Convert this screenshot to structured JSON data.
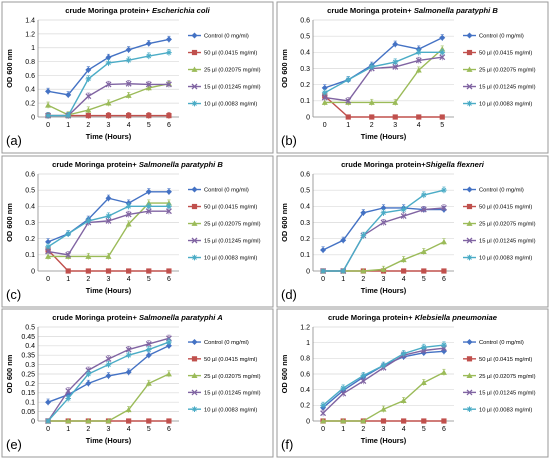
{
  "figure": {
    "background": "#ffffff",
    "panel_border_color": "#999999",
    "axis_color": "#888888",
    "grid_color": "#d9d9d9"
  },
  "series_styles": [
    {
      "color": "#4472c4",
      "marker": "diamond"
    },
    {
      "color": "#c0504d",
      "marker": "square"
    },
    {
      "color": "#9bbb59",
      "marker": "triangle"
    },
    {
      "color": "#8064a2",
      "marker": "x"
    },
    {
      "color": "#4bacc6",
      "marker": "star"
    }
  ],
  "chart_data": [
    {
      "type": "line",
      "panel_letter": "(a)",
      "title_prefix": "crude Moringa protein+ ",
      "title_organism": "Escherichia coli",
      "xlabel": "Time (Hours)",
      "ylabel": "OD 600 nm",
      "x": [
        0,
        1,
        2,
        3,
        4,
        5,
        6
      ],
      "ylim": [
        0,
        1.4
      ],
      "yticks": [
        0,
        0.2,
        0.4,
        0.6,
        0.8,
        1,
        1.2,
        1.4
      ],
      "ytick_labels": [
        "0",
        "0.2",
        "0.4",
        "0.6",
        "0.8",
        "1",
        "1.2",
        "1.4"
      ],
      "grid": true,
      "legend": "right",
      "series": [
        {
          "name": "Control (0 mg/ml)",
          "values": [
            0.37,
            0.32,
            0.68,
            0.86,
            0.97,
            1.06,
            1.12
          ]
        },
        {
          "name": "50 µl (0.0415 mg/ml)",
          "values": [
            0.02,
            0.02,
            0.02,
            0.02,
            0.02,
            0.02,
            0.02
          ]
        },
        {
          "name": "25 µl (0.02075 mg/ml)",
          "values": [
            0.17,
            0.03,
            0.1,
            0.2,
            0.31,
            0.42,
            0.48
          ]
        },
        {
          "name": "15 µl (0.01245 mg/ml)",
          "values": [
            0.02,
            0.02,
            0.3,
            0.47,
            0.48,
            0.47,
            0.47
          ]
        },
        {
          "name": "10 µl (0.0083 mg/ml)",
          "values": [
            0.02,
            0.02,
            0.55,
            0.78,
            0.82,
            0.88,
            0.93
          ]
        }
      ]
    },
    {
      "type": "line",
      "panel_letter": "(b)",
      "title_prefix": "crude Moringa protein+ ",
      "title_organism": "Salmonella paratyphi B",
      "xlabel": "Time (Hours)",
      "ylabel": "OD 600 nm",
      "x": [
        0,
        1,
        2,
        3,
        4,
        5
      ],
      "ylim": [
        0,
        0.6
      ],
      "yticks": [
        0,
        0.1,
        0.2,
        0.3,
        0.4,
        0.5,
        0.6
      ],
      "ytick_labels": [
        "0",
        "0.1",
        "0.2",
        "0.3",
        "0.4",
        "0.5",
        "0.6"
      ],
      "grid": true,
      "legend": "right",
      "series": [
        {
          "name": "Control (0 mg/ml)",
          "values": [
            0.18,
            0.23,
            0.32,
            0.45,
            0.42,
            0.49
          ]
        },
        {
          "name": "50 µl (0.0415 mg/ml)",
          "values": [
            0.13,
            0.0,
            0.0,
            0.0,
            0.0,
            0.0
          ]
        },
        {
          "name": "25 µl (0.02075 mg/ml)",
          "values": [
            0.09,
            0.09,
            0.09,
            0.09,
            0.29,
            0.42
          ]
        },
        {
          "name": "15 µl (0.01245 mg/ml)",
          "values": [
            0.12,
            0.1,
            0.3,
            0.31,
            0.35,
            0.37
          ]
        },
        {
          "name": "10 µl (0.0083 mg/ml)",
          "values": [
            0.15,
            0.23,
            0.31,
            0.34,
            0.4,
            0.4
          ]
        }
      ]
    },
    {
      "type": "line",
      "panel_letter": "(c)",
      "title_prefix": "crude Moringa protein+ ",
      "title_organism": "Salmonella paratyphi B",
      "xlabel": "Time (Hours)",
      "ylabel": "OD 600 nm",
      "x": [
        0,
        1,
        2,
        3,
        4,
        5,
        6
      ],
      "ylim": [
        0,
        0.6
      ],
      "yticks": [
        0,
        0.1,
        0.2,
        0.3,
        0.4,
        0.5,
        0.6
      ],
      "ytick_labels": [
        "0",
        "0.1",
        "0.2",
        "0.3",
        "0.4",
        "0.5",
        "0.6"
      ],
      "grid": true,
      "legend": "right",
      "series": [
        {
          "name": "Control (0 mg/ml)",
          "values": [
            0.18,
            0.23,
            0.32,
            0.45,
            0.42,
            0.49,
            0.49
          ]
        },
        {
          "name": "50 µl (0.0415 mg/ml)",
          "values": [
            0.13,
            0.0,
            0.0,
            0.0,
            0.0,
            0.0,
            0.0
          ]
        },
        {
          "name": "25 µl (0.02075 mg/ml)",
          "values": [
            0.09,
            0.09,
            0.09,
            0.09,
            0.29,
            0.42,
            0.42
          ]
        },
        {
          "name": "15 µl (0.01245 mg/ml)",
          "values": [
            0.12,
            0.1,
            0.3,
            0.31,
            0.35,
            0.37,
            0.37
          ]
        },
        {
          "name": "10 µl (0.0083 mg/ml)",
          "values": [
            0.15,
            0.23,
            0.31,
            0.34,
            0.4,
            0.4,
            0.4
          ]
        }
      ]
    },
    {
      "type": "line",
      "panel_letter": "(d)",
      "title_prefix": "crude Moringa protein+",
      "title_organism": "Shigella flexneri",
      "xlabel": "Time (Hours)",
      "ylabel": "OD 600 nm",
      "x": [
        0,
        1,
        2,
        3,
        4,
        5,
        6
      ],
      "ylim": [
        0,
        0.6
      ],
      "yticks": [
        0,
        0.1,
        0.2,
        0.3,
        0.4,
        0.5,
        0.6
      ],
      "ytick_labels": [
        "0",
        "0.1",
        "0.2",
        "0.3",
        "0.4",
        "0.5",
        "0.6"
      ],
      "grid": true,
      "legend": "right",
      "series": [
        {
          "name": "Control (0 mg/ml)",
          "values": [
            0.13,
            0.19,
            0.36,
            0.39,
            0.39,
            0.38,
            0.38
          ]
        },
        {
          "name": "50 µl (0.0415 mg/ml)",
          "values": [
            0.0,
            0.0,
            0.0,
            0.0,
            0.0,
            0.0,
            0.0
          ]
        },
        {
          "name": "25 µl (0.02075 mg/ml)",
          "values": [
            0.0,
            0.0,
            0.0,
            0.01,
            0.07,
            0.12,
            0.18
          ]
        },
        {
          "name": "15 µl (0.01245 mg/ml)",
          "values": [
            0.0,
            0.0,
            0.22,
            0.3,
            0.34,
            0.38,
            0.39
          ]
        },
        {
          "name": "10 µl (0.0083 mg/ml)",
          "values": [
            0.0,
            0.0,
            0.22,
            0.36,
            0.38,
            0.47,
            0.5
          ]
        }
      ]
    },
    {
      "type": "line",
      "panel_letter": "(e)",
      "title_prefix": "crude Moringa protein+ ",
      "title_organism": "Salmonella paratyphi  A",
      "xlabel": "Time (Hours)",
      "ylabel": "OD 600 nm",
      "x": [
        0,
        1,
        2,
        3,
        4,
        5,
        6
      ],
      "ylim": [
        0,
        0.5
      ],
      "yticks": [
        0,
        0.05,
        0.1,
        0.15,
        0.2,
        0.25,
        0.3,
        0.35,
        0.4,
        0.45,
        0.5
      ],
      "ytick_labels": [
        "0",
        "0.05",
        "0.1",
        "0.15",
        "0.2",
        "0.25",
        "0.3",
        "0.35",
        "0.4",
        "0.45",
        "0.5"
      ],
      "grid": true,
      "legend": "right",
      "series": [
        {
          "name": "Control (0 mg/ml)",
          "values": [
            0.1,
            0.14,
            0.2,
            0.24,
            0.26,
            0.35,
            0.4
          ]
        },
        {
          "name": "50 µl (0.0415 mg/ml)",
          "values": [
            0.0,
            0.0,
            0.0,
            0.0,
            0.0,
            0.0,
            0.0
          ]
        },
        {
          "name": "25 µl (0.02075 mg/ml)",
          "values": [
            0.0,
            0.0,
            0.0,
            0.0,
            0.06,
            0.2,
            0.25
          ]
        },
        {
          "name": "15 µl (0.01245 mg/ml)",
          "values": [
            0.0,
            0.16,
            0.27,
            0.33,
            0.38,
            0.41,
            0.44
          ]
        },
        {
          "name": "10 µl (0.0083 mg/ml)",
          "values": [
            0.0,
            0.12,
            0.25,
            0.3,
            0.35,
            0.38,
            0.42
          ]
        }
      ]
    },
    {
      "type": "line",
      "panel_letter": "(f)",
      "title_prefix": "crude Moringa protein+ ",
      "title_organism": "Klebsiella pneumoniae",
      "xlabel": "Time (Hours)",
      "ylabel": "OD 600 nm",
      "x": [
        0,
        1,
        2,
        3,
        4,
        5,
        6
      ],
      "ylim": [
        0,
        1.2
      ],
      "yticks": [
        0,
        0.2,
        0.4,
        0.6,
        0.8,
        1,
        1.2
      ],
      "ytick_labels": [
        "0",
        "0.2",
        "0.4",
        "0.6",
        "0.8",
        "1",
        "1.2"
      ],
      "grid": true,
      "legend": "right",
      "series": [
        {
          "name": "Control (0 mg/ml)",
          "values": [
            0.17,
            0.39,
            0.56,
            0.71,
            0.82,
            0.87,
            0.89
          ]
        },
        {
          "name": "50 µl (0.0415 mg/ml)",
          "values": [
            0.0,
            0.0,
            0.0,
            0.0,
            0.0,
            0.0,
            0.0
          ]
        },
        {
          "name": "25 µl (0.02075 mg/ml)",
          "values": [
            0.0,
            0.0,
            0.0,
            0.15,
            0.26,
            0.49,
            0.62
          ]
        },
        {
          "name": "15 µl (0.01245 mg/ml)",
          "values": [
            0.1,
            0.35,
            0.51,
            0.68,
            0.84,
            0.9,
            0.93
          ]
        },
        {
          "name": "10 µl (0.0083 mg/ml)",
          "values": [
            0.2,
            0.42,
            0.58,
            0.71,
            0.86,
            0.94,
            0.97
          ]
        }
      ]
    }
  ]
}
